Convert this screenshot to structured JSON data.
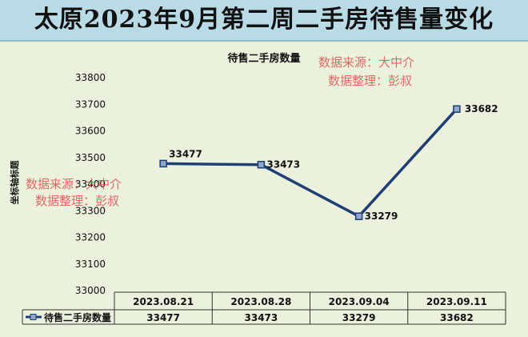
{
  "banner_title": "太原2023年9月第二周二手房待售量变化",
  "watermark": {
    "line1": "数据来源：大中介",
    "line2": "数据整理：彭叔"
  },
  "chart_data": {
    "type": "line",
    "title": "待售二手房数量",
    "ylabel": "坐标轴标题",
    "xlabel": "",
    "categories": [
      "2023.08.21",
      "2023.08.28",
      "2023.09.04",
      "2023.09.11"
    ],
    "series": [
      {
        "name": "待售二手房数量",
        "values": [
          33477,
          33473,
          33279,
          33682
        ]
      }
    ],
    "ylim": [
      33000,
      33800
    ],
    "yticks": [
      33000,
      33100,
      33200,
      33300,
      33400,
      33500,
      33600,
      33700,
      33800
    ],
    "data_labels": true,
    "data_table": true,
    "line_color": "#1f3f73",
    "marker_color": "#8fa7c9",
    "background_color": "#ebf1dd"
  }
}
